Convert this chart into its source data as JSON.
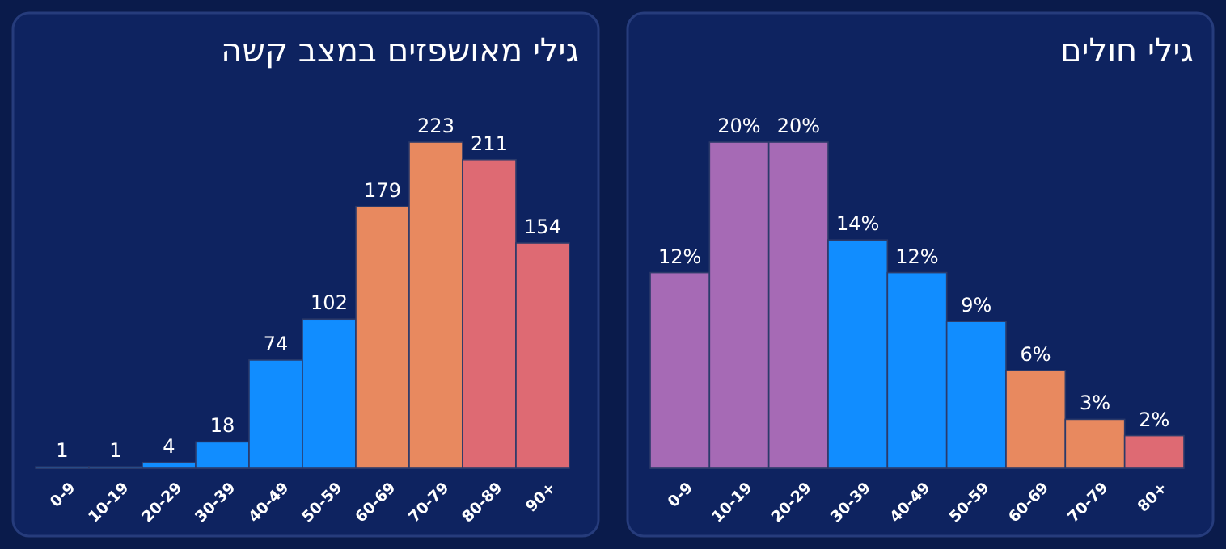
{
  "chart_data": [
    {
      "type": "bar",
      "title": "גילי מאושפזים במצב קשה",
      "categories": [
        "0-9",
        "10-19",
        "20-29",
        "30-39",
        "40-49",
        "50-59",
        "60-69",
        "70-79",
        "80-89",
        "90+"
      ],
      "values": [
        1,
        1,
        4,
        18,
        74,
        102,
        179,
        223,
        211,
        154
      ],
      "colors": [
        "#118dff",
        "#118dff",
        "#118dff",
        "#118dff",
        "#118dff",
        "#118dff",
        "#e8895f",
        "#e8895f",
        "#de6a73",
        "#de6a73"
      ],
      "data_labels": true
    },
    {
      "type": "bar",
      "title": "גילי חולים",
      "categories": [
        "0-9",
        "10-19",
        "20-29",
        "30-39",
        "40-49",
        "50-59",
        "60-69",
        "70-79",
        "80+"
      ],
      "values": [
        12,
        20,
        20,
        14,
        12,
        9,
        6,
        3,
        2
      ],
      "value_labels": [
        "12%",
        "20%",
        "20%",
        "14%",
        "12%",
        "9%",
        "6%",
        "3%",
        "2%"
      ],
      "colors": [
        "#a66ab5",
        "#a66ab5",
        "#a66ab5",
        "#118dff",
        "#118dff",
        "#118dff",
        "#e8895f",
        "#e8895f",
        "#de6a73"
      ]
    }
  ]
}
